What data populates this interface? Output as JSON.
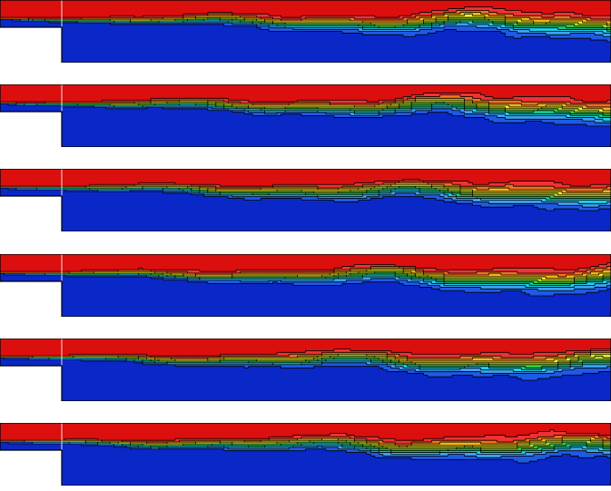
{
  "figure": {
    "description_visible_text": "",
    "panel_count": 6,
    "palette": {
      "lvl0": "#0a28c8",
      "lvl1": "#1e5ae6",
      "lvl2": "#3ca0f0",
      "lvl3": "#19d2f0",
      "lvl4": "#14c88c",
      "lvl5": "#3cc83c",
      "lvl6": "#aadc28",
      "lvl7": "#f0f01e",
      "lvl8": "#f5b414",
      "lvl9": "#f56e1e",
      "lvl10": "#f03232",
      "lvl11": "#dc0f0f",
      "contour": "#000000",
      "inlet_line": "#ffffff",
      "background": "#ffffff"
    },
    "panels": [
      {
        "id": "panel-1",
        "phase": 0.0,
        "hot_spots": [
          0.58,
          0.98
        ],
        "cold_spots": [
          0.24,
          0.68
        ]
      },
      {
        "id": "panel-2",
        "phase": 0.8,
        "hot_spots": [
          0.46,
          0.62,
          0.99
        ],
        "cold_spots": [
          0.22,
          0.42,
          0.68
        ]
      },
      {
        "id": "panel-3",
        "phase": 1.6,
        "hot_spots": [
          0.53,
          0.68,
          0.99
        ],
        "cold_spots": [
          0.24,
          0.6,
          0.76
        ]
      },
      {
        "id": "panel-4",
        "phase": 2.4,
        "hot_spots": [
          0.52,
          0.68,
          0.8
        ],
        "cold_spots": [
          0.24,
          0.36,
          0.68
        ]
      },
      {
        "id": "panel-5",
        "phase": 3.2,
        "hot_spots": [
          0.6,
          0.81,
          0.98
        ],
        "cold_spots": [
          0.27,
          0.35,
          0.62
        ]
      },
      {
        "id": "panel-6",
        "phase": 4.0,
        "hot_spots": [
          0.5,
          0.66,
          0.98
        ],
        "cold_spots": [
          0.18,
          0.36,
          0.75
        ]
      }
    ]
  }
}
